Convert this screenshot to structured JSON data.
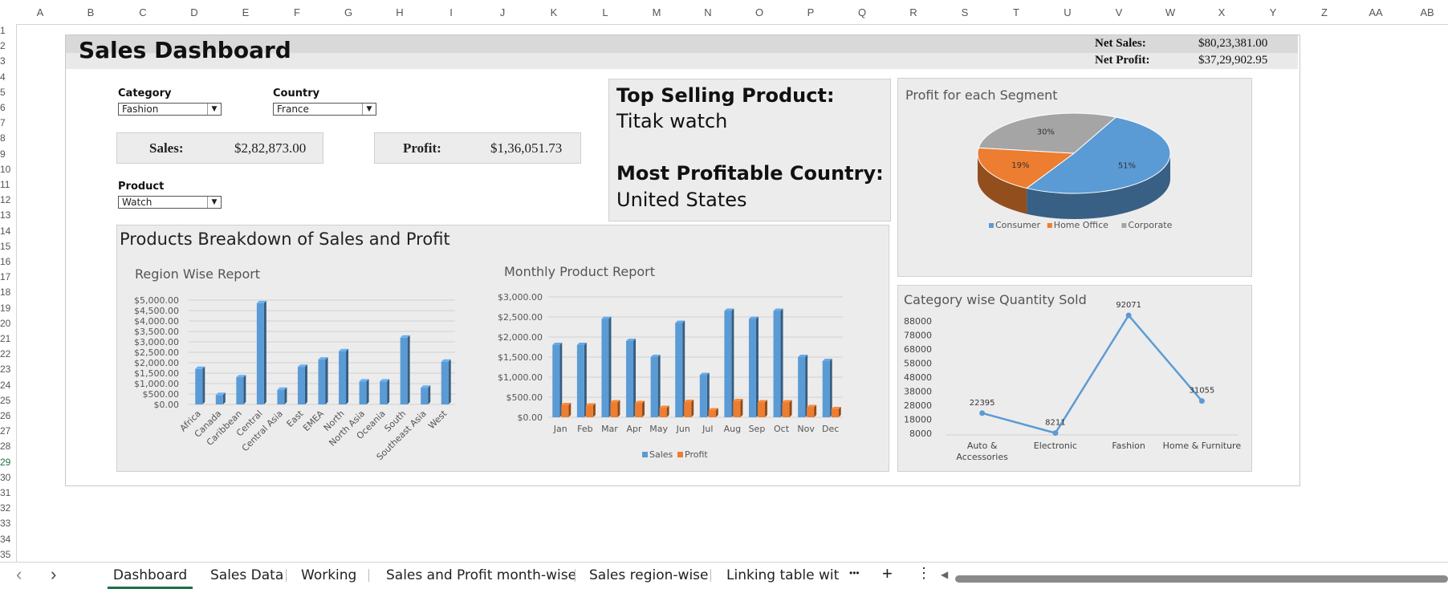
{
  "spreadsheet": {
    "columns": [
      "A",
      "B",
      "C",
      "D",
      "E",
      "F",
      "G",
      "H",
      "I",
      "J",
      "K",
      "L",
      "M",
      "N",
      "O",
      "P",
      "Q",
      "R",
      "S",
      "T",
      "U",
      "V",
      "W",
      "X",
      "Y",
      "Z",
      "AA",
      "AB"
    ],
    "rows": [
      "1",
      "2",
      "3",
      "4",
      "5",
      "6",
      "7",
      "8",
      "9",
      "10",
      "11",
      "12",
      "13",
      "14",
      "15",
      "16",
      "17",
      "18",
      "19",
      "20",
      "21",
      "22",
      "23",
      "24",
      "25",
      "26",
      "27",
      "28",
      "29",
      "30",
      "31",
      "32",
      "33",
      "34",
      "35"
    ],
    "selected_row": "29"
  },
  "dashboard": {
    "title": "Sales Dashboard",
    "net_sales_label": "Net Sales:",
    "net_sales_value": "$80,23,381.00",
    "net_profit_label": "Net Profit:",
    "net_profit_value": "$37,29,902.95"
  },
  "filters": {
    "category_label": "Category",
    "category_value": "Fashion",
    "country_label": "Country",
    "country_value": "France",
    "product_label": "Product",
    "product_value": "Watch"
  },
  "kpis": {
    "sales_label": "Sales:",
    "sales_value": "$2,82,873.00",
    "profit_label": "Profit:",
    "profit_value": "$1,36,051.73"
  },
  "highlights": {
    "top_product_label": "Top Selling Product:",
    "top_product_value": "Titak watch",
    "top_country_label": "Most Profitable Country:",
    "top_country_value": "United States"
  },
  "breakdown_title": "Products Breakdown of Sales and Profit",
  "chart_data": [
    {
      "type": "bar",
      "title": "Region Wise Report",
      "categories": [
        "Africa",
        "Canada",
        "Caribbean",
        "Central",
        "Central Asia",
        "East",
        "EMEA",
        "North",
        "North Asia",
        "Oceania",
        "South",
        "Southeast Asia",
        "West"
      ],
      "values": [
        1700,
        450,
        1300,
        4850,
        700,
        1800,
        2150,
        2550,
        1100,
        1100,
        3200,
        800,
        2050
      ],
      "yticks": [
        "$0.00",
        "$500.00",
        "$1,000.00",
        "$1,500.00",
        "$2,000.00",
        "$2,500.00",
        "$3,000.00",
        "$3,500.00",
        "$4,000.00",
        "$4,500.00",
        "$5,000.00"
      ],
      "ylim": [
        0,
        5000
      ],
      "color": "#5b9bd5"
    },
    {
      "type": "bar",
      "title": "Monthly Product Report",
      "categories": [
        "Jan",
        "Feb",
        "Mar",
        "Apr",
        "May",
        "Jun",
        "Jul",
        "Aug",
        "Sep",
        "Oct",
        "Nov",
        "Dec"
      ],
      "series": [
        {
          "name": "Sales",
          "values": [
            1800,
            1800,
            2450,
            1900,
            1500,
            2350,
            1050,
            2650,
            2450,
            2650,
            1500,
            1400
          ],
          "color": "#5b9bd5"
        },
        {
          "name": "Profit",
          "values": [
            300,
            290,
            370,
            350,
            230,
            380,
            170,
            400,
            370,
            370,
            250,
            200
          ],
          "color": "#ed7d31"
        }
      ],
      "yticks": [
        "$0.00",
        "$500.00",
        "$1,000.00",
        "$1,500.00",
        "$2,000.00",
        "$2,500.00",
        "$3,000.00"
      ],
      "ylim": [
        0,
        3000
      ],
      "legend": "bottom"
    },
    {
      "type": "pie",
      "title": "Profit for each Segment",
      "labels": [
        "Consumer",
        "Home Office",
        "Corporate"
      ],
      "values": [
        51,
        19,
        30
      ],
      "value_labels": [
        "51%",
        "19%",
        "30%"
      ],
      "colors": [
        "#5b9bd5",
        "#ed7d31",
        "#a5a5a5"
      ],
      "legend": "bottom"
    },
    {
      "type": "line",
      "title": "Category wise Quantity Sold",
      "categories": [
        "Auto & Accessories",
        "Electronic",
        "Fashion",
        "Home & Furniture"
      ],
      "category_lines": [
        [
          "Auto &",
          "Accessories"
        ],
        [
          "Electronic"
        ],
        [
          "Fashion"
        ],
        [
          "Home & Furniture"
        ]
      ],
      "values": [
        22395,
        8211,
        92071,
        31055
      ],
      "value_labels": [
        "22395",
        "8211",
        "92071",
        "31055"
      ],
      "yticks": [
        "8000",
        "18000",
        "28000",
        "38000",
        "48000",
        "58000",
        "68000",
        "78000",
        "88000"
      ],
      "ylim": [
        8000,
        92071
      ],
      "color": "#5b9bd5"
    }
  ],
  "tabs": [
    {
      "label": "Dashboard",
      "active": true
    },
    {
      "label": "Sales Data"
    },
    {
      "label": "Working"
    },
    {
      "label": "Sales and Profit month-wise"
    },
    {
      "label": "Sales region-wise"
    },
    {
      "label": "Linking table with ("
    }
  ],
  "tab_controls": {
    "prev": "‹",
    "next": "›",
    "more": "•••",
    "add": "+",
    "menu": "⋮",
    "scroll_left": "◀"
  }
}
